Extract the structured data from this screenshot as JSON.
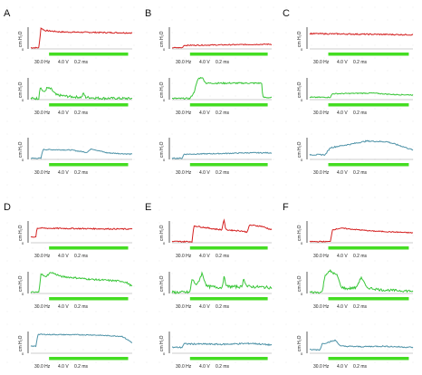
{
  "panels": [
    {
      "label": "A"
    },
    {
      "label": "B"
    },
    {
      "label": "C"
    },
    {
      "label": "D"
    },
    {
      "label": "E"
    },
    {
      "label": "F"
    }
  ],
  "y_axis_label": "cm H₂O",
  "zero_label": "0",
  "stim_params": [
    "30.0 Hz",
    "4.0 V",
    "0.2 ms"
  ],
  "colors": {
    "red": "#d42020",
    "green": "#39c639",
    "blue": "#4f93a8",
    "stim_bar": "#44dd22",
    "axis": "#333333",
    "dot_grid": "#e6e6e6"
  }
}
